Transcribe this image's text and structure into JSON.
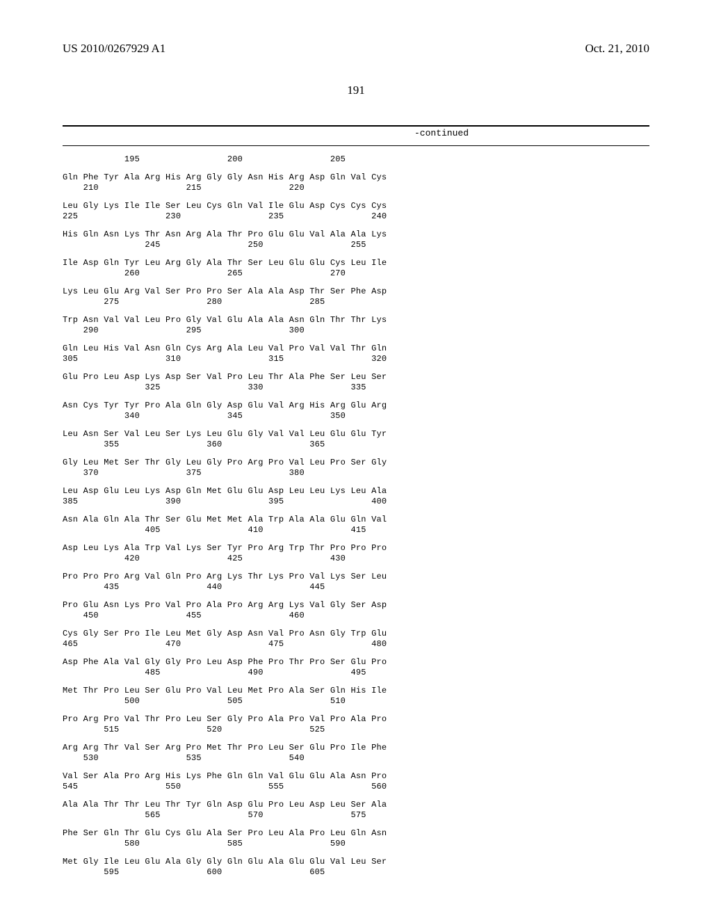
{
  "header": {
    "pub_number": "US 2010/0267929 A1",
    "pub_date": "Oct. 21, 2010"
  },
  "page_number": "191",
  "continued_label": "-continued",
  "sequence": {
    "groups": [
      {
        "aa": "                                                                ",
        "num": "            195                 200                 205         "
      },
      {
        "aa": "Gln Phe Tyr Ala Arg His Arg Gly Gly Asn His Arg Asp Gln Val Cys ",
        "num": "    210                 215                 220                 "
      },
      {
        "aa": "Leu Gly Lys Ile Ile Ser Leu Cys Gln Val Ile Glu Asp Cys Cys Cys ",
        "num": "225                 230                 235                 240 "
      },
      {
        "aa": "His Gln Asn Lys Thr Asn Arg Ala Thr Pro Glu Glu Val Ala Ala Lys ",
        "num": "                245                 250                 255     "
      },
      {
        "aa": "Ile Asp Gln Tyr Leu Arg Gly Ala Thr Ser Leu Glu Glu Cys Leu Ile ",
        "num": "            260                 265                 270         "
      },
      {
        "aa": "Lys Leu Glu Arg Val Ser Pro Pro Ser Ala Ala Asp Thr Ser Phe Asp ",
        "num": "        275                 280                 285             "
      },
      {
        "aa": "Trp Asn Val Val Leu Pro Gly Val Glu Ala Ala Asn Gln Thr Thr Lys ",
        "num": "    290                 295                 300                 "
      },
      {
        "aa": "Gln Leu His Val Asn Gln Cys Arg Ala Leu Val Pro Val Val Thr Gln ",
        "num": "305                 310                 315                 320 "
      },
      {
        "aa": "Glu Pro Leu Asp Lys Asp Ser Val Pro Leu Thr Ala Phe Ser Leu Ser ",
        "num": "                325                 330                 335     "
      },
      {
        "aa": "Asn Cys Tyr Tyr Pro Ala Gln Gly Asp Glu Val Arg His Arg Glu Arg ",
        "num": "            340                 345                 350         "
      },
      {
        "aa": "Leu Asn Ser Val Leu Ser Lys Leu Glu Gly Val Val Leu Glu Glu Tyr ",
        "num": "        355                 360                 365             "
      },
      {
        "aa": "Gly Leu Met Ser Thr Gly Leu Gly Pro Arg Pro Val Leu Pro Ser Gly ",
        "num": "    370                 375                 380                 "
      },
      {
        "aa": "Leu Asp Glu Leu Lys Asp Gln Met Glu Glu Asp Leu Leu Lys Leu Ala ",
        "num": "385                 390                 395                 400 "
      },
      {
        "aa": "Asn Ala Gln Ala Thr Ser Glu Met Met Ala Trp Ala Ala Glu Gln Val ",
        "num": "                405                 410                 415     "
      },
      {
        "aa": "Asp Leu Lys Ala Trp Val Lys Ser Tyr Pro Arg Trp Thr Pro Pro Pro ",
        "num": "            420                 425                 430         "
      },
      {
        "aa": "Pro Pro Pro Arg Val Gln Pro Arg Lys Thr Lys Pro Val Lys Ser Leu ",
        "num": "        435                 440                 445             "
      },
      {
        "aa": "Pro Glu Asn Lys Pro Val Pro Ala Pro Arg Arg Lys Val Gly Ser Asp ",
        "num": "    450                 455                 460                 "
      },
      {
        "aa": "Cys Gly Ser Pro Ile Leu Met Gly Asp Asn Val Pro Asn Gly Trp Glu ",
        "num": "465                 470                 475                 480 "
      },
      {
        "aa": "Asp Phe Ala Val Gly Gly Pro Leu Asp Phe Pro Thr Pro Ser Glu Pro ",
        "num": "                485                 490                 495     "
      },
      {
        "aa": "Met Thr Pro Leu Ser Glu Pro Val Leu Met Pro Ala Ser Gln His Ile ",
        "num": "            500                 505                 510         "
      },
      {
        "aa": "Pro Arg Pro Val Thr Pro Leu Ser Gly Pro Ala Pro Val Pro Ala Pro ",
        "num": "        515                 520                 525             "
      },
      {
        "aa": "Arg Arg Thr Val Ser Arg Pro Met Thr Pro Leu Ser Glu Pro Ile Phe ",
        "num": "    530                 535                 540                 "
      },
      {
        "aa": "Val Ser Ala Pro Arg His Lys Phe Gln Gln Val Glu Glu Ala Asn Pro ",
        "num": "545                 550                 555                 560 "
      },
      {
        "aa": "Ala Ala Thr Thr Leu Thr Tyr Gln Asp Glu Pro Leu Asp Leu Ser Ala ",
        "num": "                565                 570                 575     "
      },
      {
        "aa": "Phe Ser Gln Thr Glu Cys Glu Ala Ser Pro Leu Ala Pro Leu Gln Asn ",
        "num": "            580                 585                 590         "
      },
      {
        "aa": "Met Gly Ile Leu Glu Ala Gly Gly Gln Glu Ala Glu Glu Val Leu Ser ",
        "num": "        595                 600                 605             "
      }
    ]
  }
}
